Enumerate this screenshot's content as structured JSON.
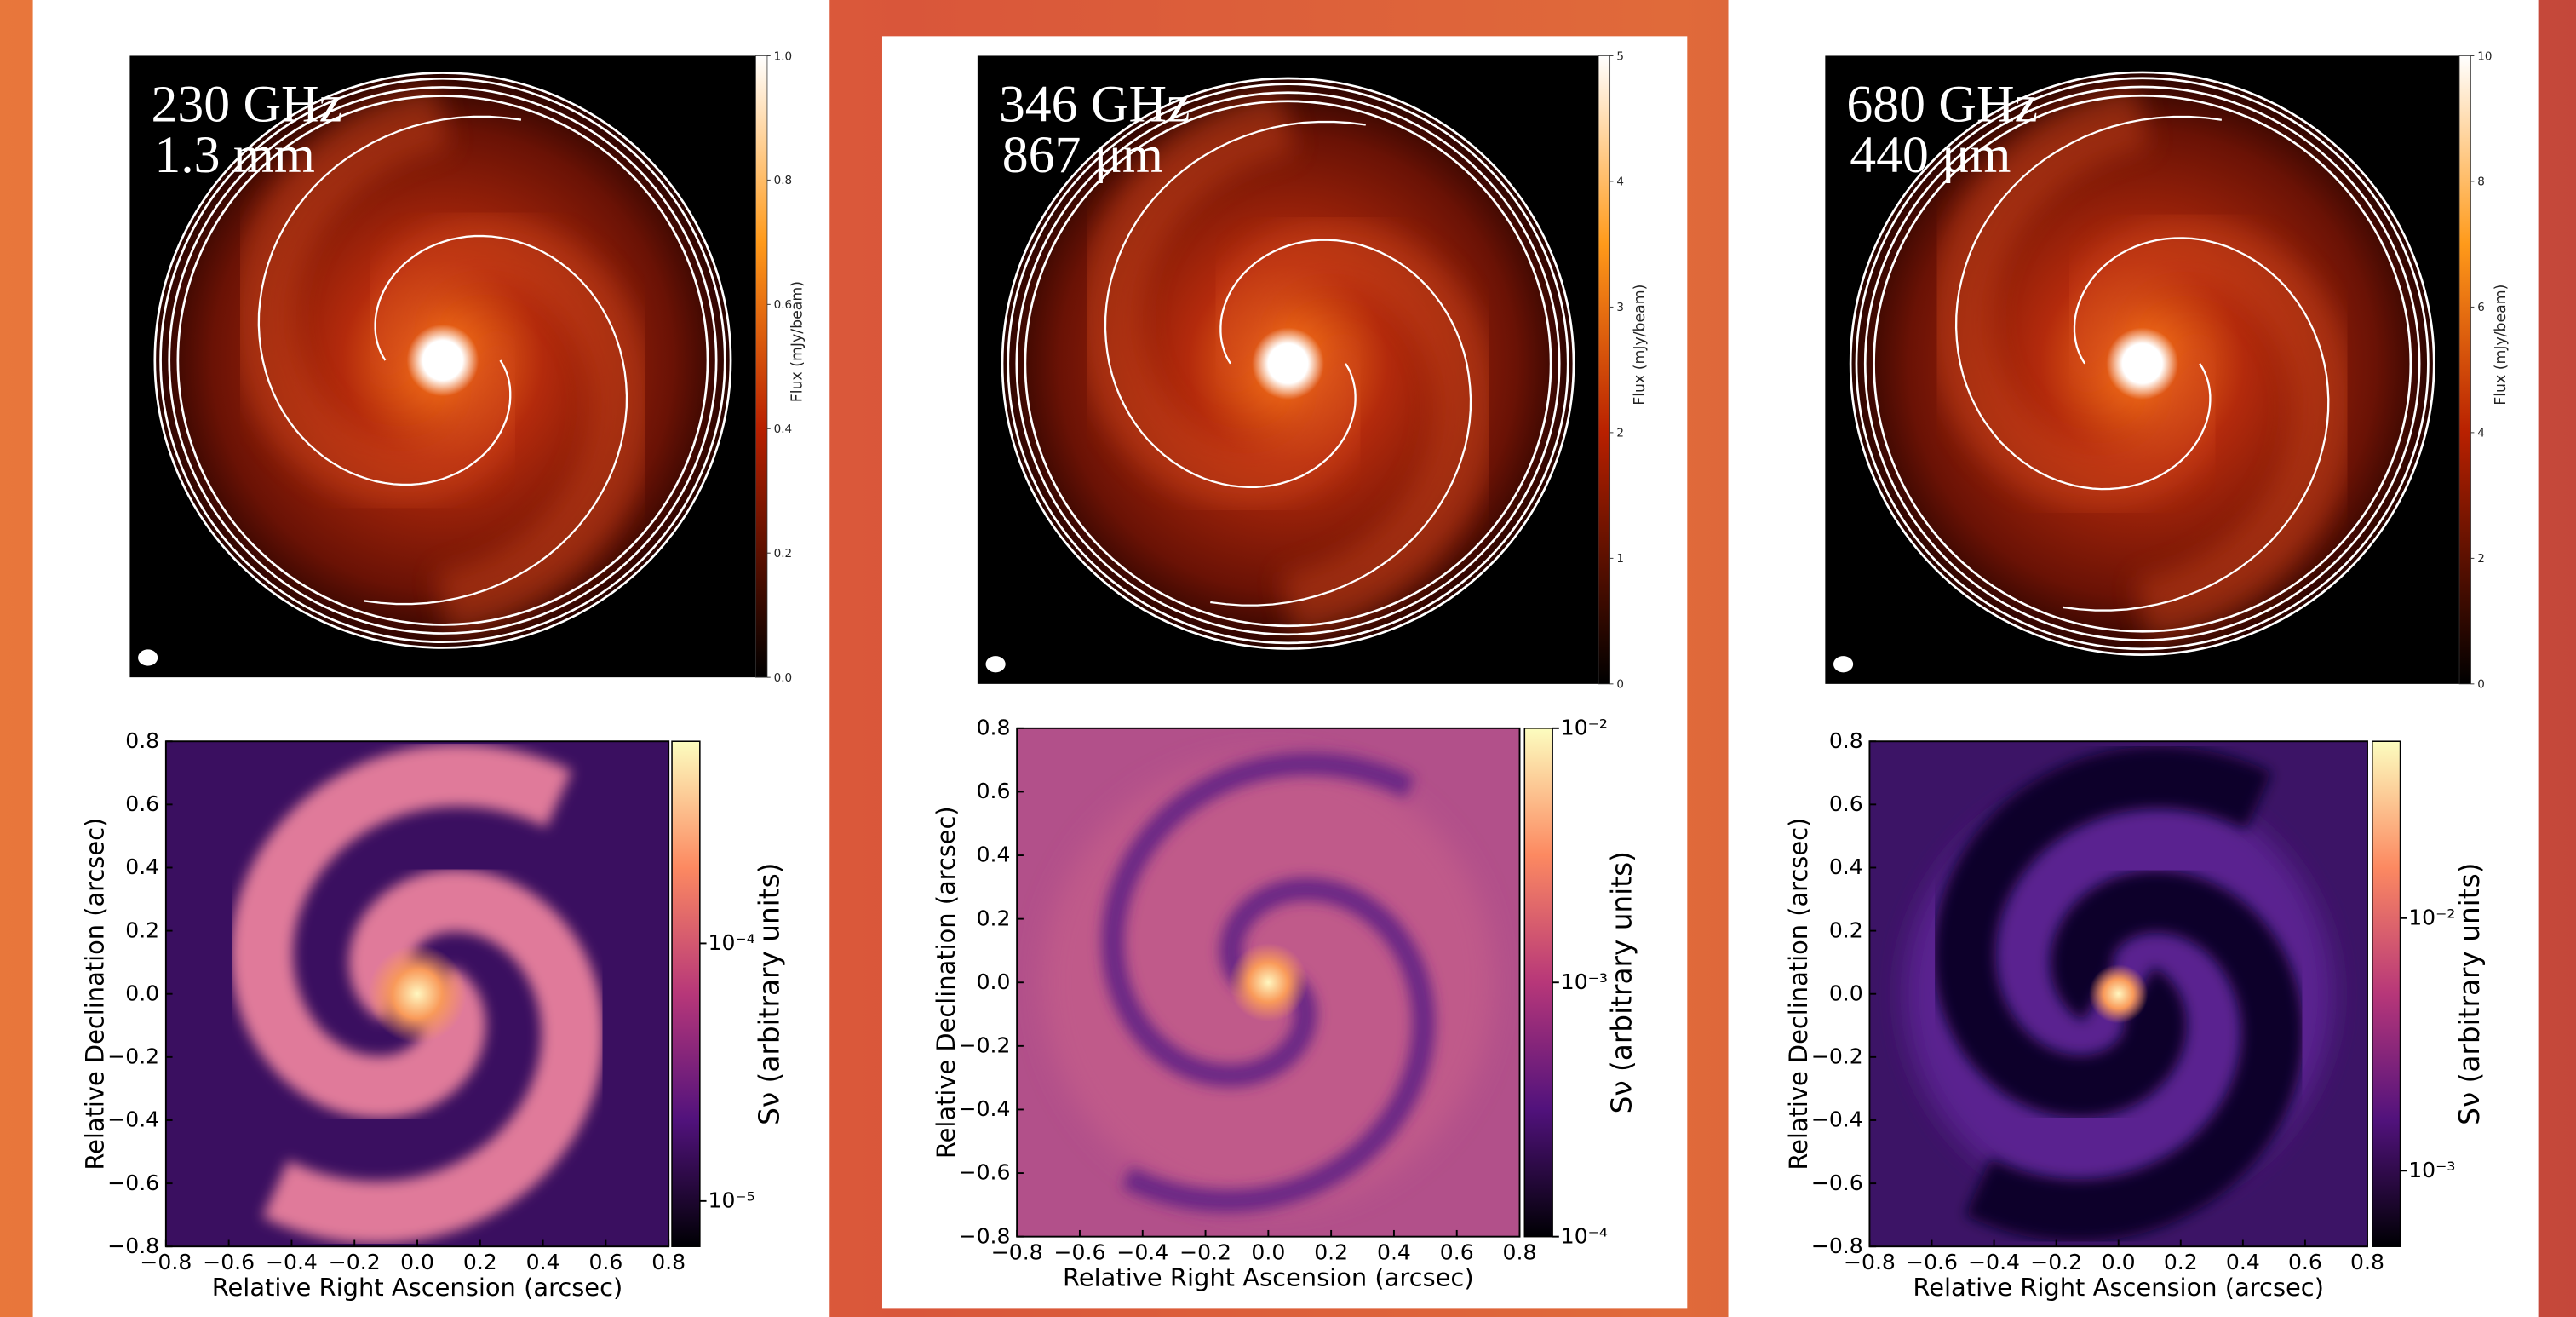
{
  "top_panels": [
    {
      "frequency": "230 GHz",
      "wavelength": "1.3 mm",
      "colorbar": {
        "label": "Flux (mJy/beam)",
        "ticks": [
          "0.0",
          "0.2",
          "0.4",
          "0.6",
          "0.8",
          "1.0"
        ]
      }
    },
    {
      "frequency": "346 GHz",
      "wavelength": "867 μm",
      "colorbar": {
        "label": "Flux (mJy/beam)",
        "ticks": [
          "0",
          "1",
          "2",
          "3",
          "4",
          "5"
        ]
      }
    },
    {
      "frequency": "680 GHz",
      "wavelength": "440 μm",
      "colorbar": {
        "label": "Flux (mJy/beam)",
        "ticks": [
          "0",
          "2",
          "4",
          "6",
          "8",
          "10"
        ]
      }
    }
  ],
  "bottom_plots": [
    {
      "x_label": "Relative Right Ascension (arcsec)",
      "y_label": "Relative Declination (arcsec)",
      "colorbar_label": "Sν (arbitrary units)",
      "x_ticks": [
        "−0.8",
        "−0.6",
        "−0.4",
        "−0.2",
        "0.0",
        "0.2",
        "0.4",
        "0.6",
        "0.8"
      ],
      "y_ticks": [
        "−0.8",
        "−0.6",
        "−0.4",
        "−0.2",
        "0.0",
        "0.2",
        "0.4",
        "0.6",
        "0.8"
      ],
      "colorbar_ticks": [
        "10⁻⁴",
        "10⁻⁵"
      ]
    },
    {
      "x_label": "Relative Right Ascension (arcsec)",
      "y_label": "Relative Declination (arcsec)",
      "colorbar_label": "Sν (arbitrary units)",
      "x_ticks": [
        "−0.8",
        "−0.6",
        "−0.4",
        "−0.2",
        "0.0",
        "0.2",
        "0.4",
        "0.6",
        "0.8"
      ],
      "y_ticks": [
        "−0.8",
        "−0.6",
        "−0.4",
        "−0.2",
        "0.0",
        "0.2",
        "0.4",
        "0.6",
        "0.8"
      ],
      "colorbar_ticks": [
        "10⁻²",
        "10⁻³",
        "10⁻⁴"
      ]
    },
    {
      "x_label": "Relative Right Ascension (arcsec)",
      "y_label": "Relative Declination (arcsec)",
      "colorbar_label": "Sν (arbitrary units)",
      "x_ticks": [
        "−0.8",
        "−0.6",
        "−0.4",
        "−0.2",
        "0.0",
        "0.2",
        "0.4",
        "0.6",
        "0.8"
      ],
      "y_ticks": [
        "−0.8",
        "−0.6",
        "−0.4",
        "−0.2",
        "0.0",
        "0.2",
        "0.4",
        "0.6",
        "0.8"
      ],
      "colorbar_ticks": [
        "10⁻²",
        "10⁻³"
      ]
    }
  ]
}
